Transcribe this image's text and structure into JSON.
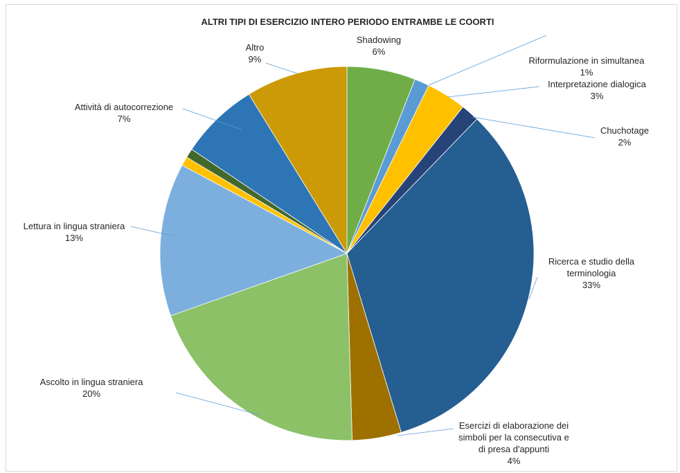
{
  "chart_data": {
    "type": "pie",
    "title": "ALTRI TIPI DI ESERCIZIO INTERO PERIODO ENTRAMBE LE COORTI",
    "slices": [
      {
        "label": [
          "Shadowing"
        ],
        "pct_label": "6%",
        "value": 6.0,
        "color": "#70ad47"
      },
      {
        "label": [
          "Riformulazione in simultanea"
        ],
        "pct_label": "1%",
        "value": 1.3,
        "color": "#5b9bd5"
      },
      {
        "label": [
          "Interpretazione dialogica"
        ],
        "pct_label": "3%",
        "value": 3.5,
        "color": "#ffc000"
      },
      {
        "label": [
          "Chuchotage"
        ],
        "pct_label": "2%",
        "value": 1.6,
        "color": "#264478"
      },
      {
        "label": [
          "Ricerca e studio della",
          "terminologia"
        ],
        "pct_label": "33%",
        "value": 33.5,
        "color": "#255e91"
      },
      {
        "label": [
          "Esercizi di elaborazione dei",
          "simboli per la consecutiva e",
          "di presa d'appunti"
        ],
        "pct_label": "4%",
        "value": 4.3,
        "color": "#9e7000"
      },
      {
        "label": [
          "Ascolto in lingua straniera"
        ],
        "pct_label": "20%",
        "value": 20.3,
        "color": "#8cc168"
      },
      {
        "label": [
          "Lettura in lingua straniera"
        ],
        "pct_label": "13%",
        "value": 13.4,
        "color": "#7cafdd"
      },
      {
        "label": [
          ""
        ],
        "pct_label": "",
        "value": 0.8,
        "color": "#ffc000"
      },
      {
        "label": [
          ""
        ],
        "pct_label": "",
        "value": 0.8,
        "color": "#43682b"
      },
      {
        "label": [
          "Attività di autocorrezione"
        ],
        "pct_label": "7%",
        "value": 6.9,
        "color": "#2e75b6"
      },
      {
        "label": [
          "Altro"
        ],
        "pct_label": "9%",
        "value": 8.9,
        "color": "#cc9a06"
      }
    ],
    "legend": "none"
  }
}
